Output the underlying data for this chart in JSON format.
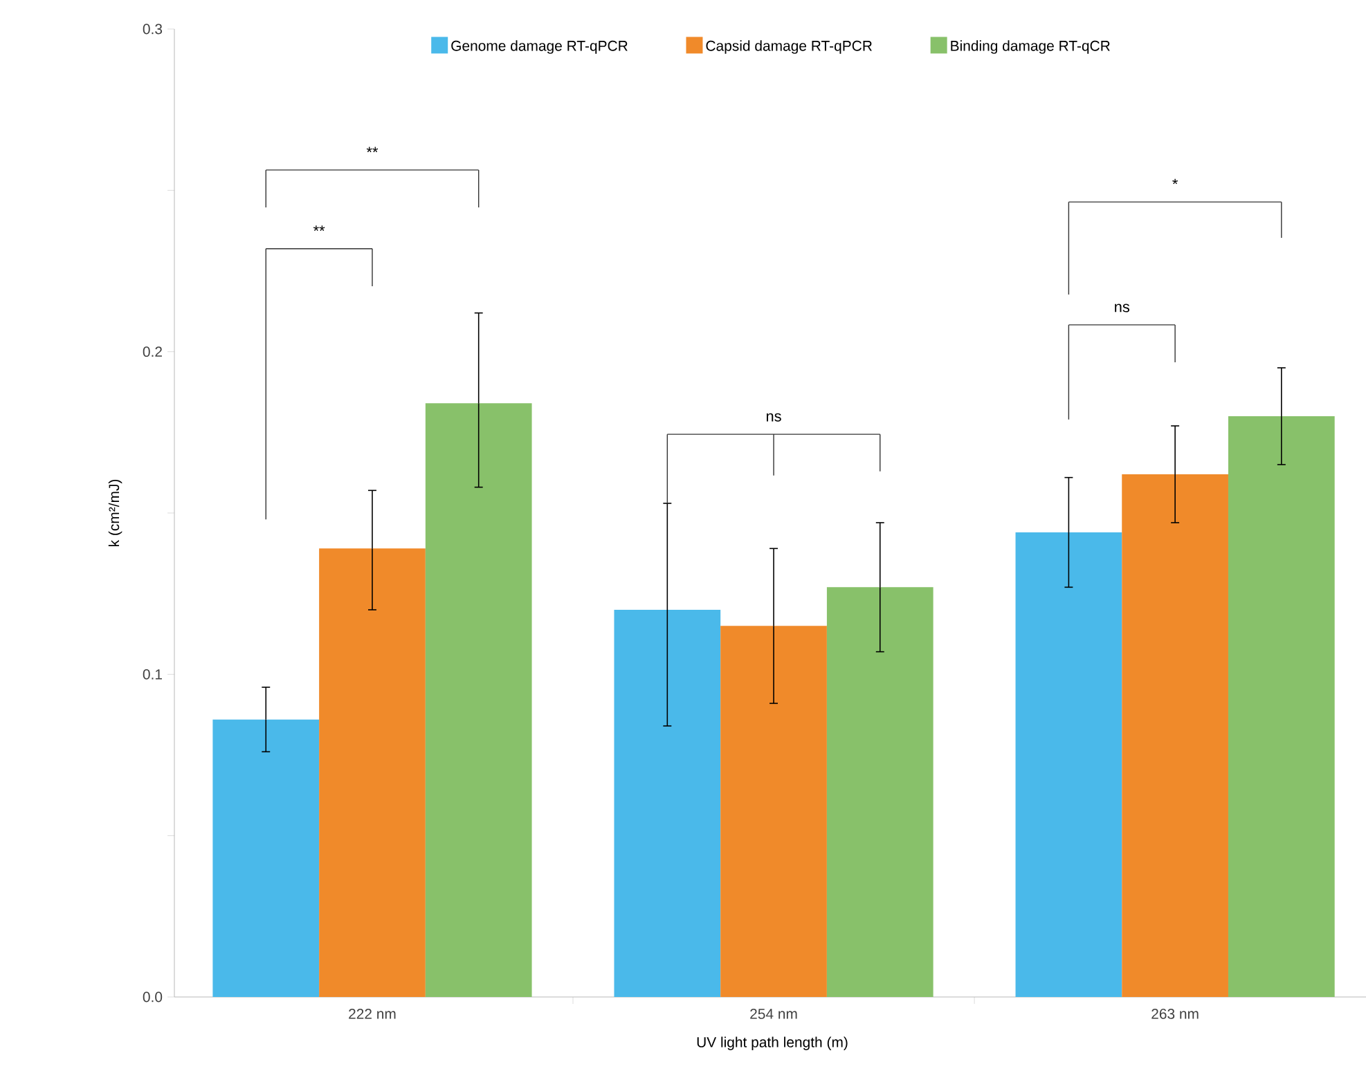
{
  "chart_data": {
    "type": "bar",
    "categories": [
      "222 nm",
      "254 nm",
      "263 nm"
    ],
    "series": [
      {
        "name": "Genome damage RT-qPCR",
        "color": "#4ab9ea",
        "values": [
          0.086,
          0.12,
          0.144
        ],
        "errors": [
          [
            0.076,
            0.096
          ],
          [
            0.084,
            0.153
          ],
          [
            0.127,
            0.161
          ]
        ]
      },
      {
        "name": "Capsid damage RT-qPCR",
        "color": "#f08a2a",
        "values": [
          0.139,
          0.115,
          0.162
        ],
        "errors": [
          [
            0.12,
            0.157
          ],
          [
            0.091,
            0.139
          ],
          [
            0.147,
            0.177
          ]
        ]
      },
      {
        "name": "Binding damage RT-qCR",
        "color": "#88c16a",
        "values": [
          0.184,
          0.127,
          0.18
        ],
        "errors": [
          [
            0.158,
            0.212
          ],
          [
            0.107,
            0.147
          ],
          [
            0.165,
            0.195
          ]
        ]
      }
    ],
    "ylim": [
      0,
      0.3
    ],
    "yticks": [
      {
        "value": 0,
        "label": "0.0"
      },
      {
        "value": 0.05,
        "label": null
      },
      0.1,
      {
        "value": 0.15,
        "label": null
      },
      0.2,
      {
        "value": 0.25,
        "label": null
      },
      0.3
    ],
    "xlabel": "UV light path length (m)",
    "ylabel": "k (cm²/mJ)",
    "legend": "top",
    "annotations": [
      "**",
      "**",
      "ns",
      "*",
      "ns"
    ]
  }
}
